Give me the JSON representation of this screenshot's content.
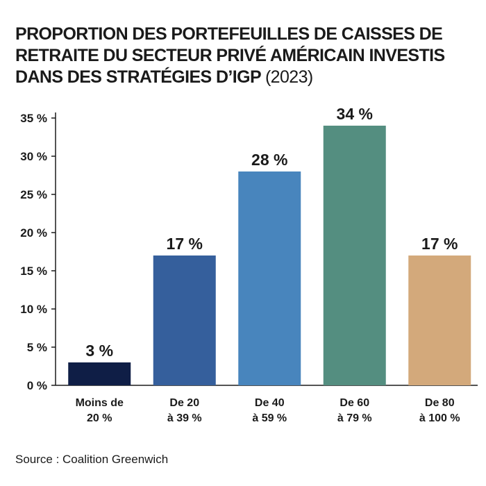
{
  "title": {
    "main": "PROPORTION DES PORTEFEUILLES DE CAISSES DE RETRAITE DU SECTEUR PRIVÉ AMÉRICAIN INVESTIS DANS DES STRATÉGIES D’IGP",
    "year": "(2023)"
  },
  "source": "Source : Coalition Greenwich",
  "chart_data": {
    "type": "bar",
    "categories": [
      [
        "Moins de",
        "20 %"
      ],
      [
        "De 20",
        "à 39 %"
      ],
      [
        "De 40",
        "à 59 %"
      ],
      [
        "De 60",
        "à 79 %"
      ],
      [
        "De 80",
        "à 100 %"
      ]
    ],
    "values": [
      3,
      17,
      28,
      34,
      17
    ],
    "data_labels": [
      "3 %",
      "17 %",
      "28 %",
      "34 %",
      "17 %"
    ],
    "colors": [
      "#0f1e46",
      "#355f9c",
      "#4885bd",
      "#548e80",
      "#d3a97b"
    ],
    "ylim": [
      0,
      35
    ],
    "yticks": [
      0,
      5,
      10,
      15,
      20,
      25,
      30,
      35
    ],
    "ytick_labels": [
      "0 %",
      "5 %",
      "10 %",
      "15 %",
      "20 %",
      "25 %",
      "30 %",
      "35 %"
    ],
    "grid": false,
    "axis_color": "#1a1a1a"
  }
}
